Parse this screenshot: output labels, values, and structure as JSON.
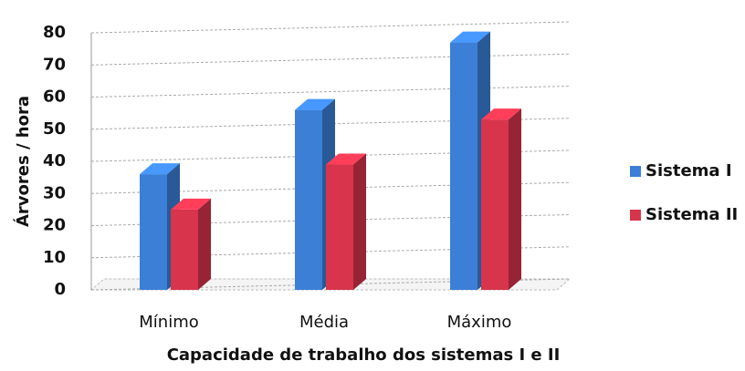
{
  "chart_data": {
    "type": "bar3d",
    "xlabel": "Capacidade de trabalho dos sistemas I e II",
    "ylabel": "Árvores / hora",
    "categories": [
      "Mínimo",
      "Média",
      "Máximo"
    ],
    "series": [
      {
        "name": "Sistema I",
        "color": "#3b7fd6",
        "values": [
          36,
          56,
          77
        ]
      },
      {
        "name": "Sistema II",
        "color": "#d8344b",
        "values": [
          25,
          39,
          53
        ]
      }
    ],
    "ylim": [
      0,
      80
    ],
    "yticks": [
      0,
      10,
      20,
      30,
      40,
      50,
      60,
      70,
      80
    ],
    "grid": true,
    "legend": "right"
  }
}
